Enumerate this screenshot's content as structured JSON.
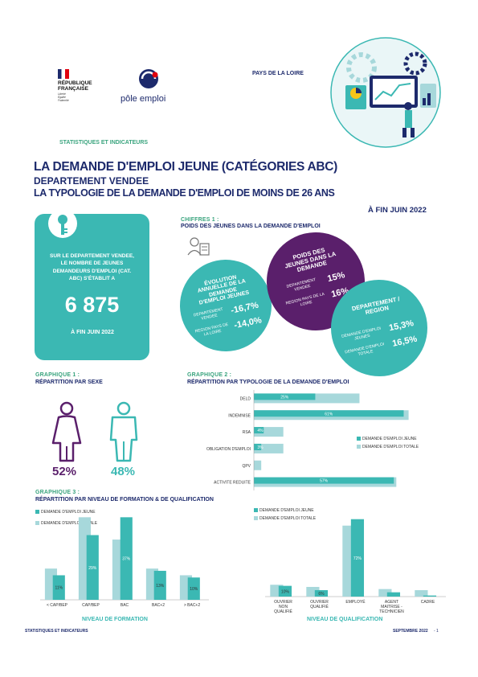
{
  "header": {
    "republic_lines": [
      "RÉPUBLIQUE",
      "FRANÇAISE"
    ],
    "republic_motto": [
      "Liberté",
      "Égalité",
      "Fraternité"
    ],
    "pole_emploi": "pôle emploi",
    "region": "PAYS DE LA LOIRE",
    "section": "STATISTIQUES ET INDICATEURS"
  },
  "titles": {
    "main": "LA DEMANDE D'EMPLOI JEUNE (CATÉGORIES ABC)",
    "dept": "DEPARTEMENT VENDEE",
    "typology": "LA TYPOLOGIE DE LA DEMANDE D'EMPLOI DE MOINS DE 26 ANS",
    "date": "À FIN JUIN 2022"
  },
  "keybox": {
    "text": "SUR LE DEPARTEMENT VENDEE, LE NOMBRE DE JEUNES DEMANDEURS D'EMPLOI (CAT. ABC) S'ÉTABLIT A",
    "value": "6 875",
    "date": "À FIN JUIN 2022"
  },
  "chiffres": {
    "label": "CHIFFRES 1 :",
    "sub": "POIDS DES JEUNES DANS LA DEMANDE D'EMPLOI",
    "evolution": {
      "title": "ÉVOLUTION ANNUELLE DE LA DEMANDE D'EMPLOI JEUNES",
      "dept_label": "DEPARTEMENT VENDEE",
      "dept_value": "-16,7%",
      "region_label": "REGION PAYS DE LA LOIRE",
      "region_value": "-14,0%"
    },
    "poids": {
      "title": "POIDS DES JEUNES DANS LA DEMANDE",
      "dept_label": "DEPARTEMENT VENDEE",
      "dept_value": "15%",
      "region_label": "REGION PAYS DE LA LOIRE",
      "region_value": "16%"
    },
    "deptregion": {
      "title": "DEPARTEMENT / REGION",
      "jeunes_label": "DEMANDE D'EMPLOI JEUNES",
      "jeunes_value": "15,3%",
      "totale_label": "DEMANDE D'EMPLOI TOTALE",
      "totale_value": "16,5%"
    }
  },
  "graph1": {
    "label": "GRAPHIQUE 1 :",
    "sub": "RÉPARTITION PAR SEXE",
    "female_pct": "52%",
    "male_pct": "48%"
  },
  "graph2": {
    "label": "GRAPHIQUE 2 :",
    "sub": "RÉPARTITION PAR TYPOLOGIE DE LA DEMANDE D'EMPLOI",
    "legend_jeune": "DEMANDE D'EMPLOI JEUNE",
    "legend_totale": "DEMANDE D'EMPLOI TOTALE"
  },
  "graph3": {
    "label": "GRAPHIQUE 3 :",
    "sub": "RÉPARTITION PAR NIVEAU DE FORMATION & DE QUALIFICATION",
    "legend_jeune": "DEMANDE D'EMPLOI JEUNE",
    "legend_totale": "DEMANDE D'EMPLOI TOTALE",
    "formation_title": "NIVEAU DE FORMATION",
    "qualification_title": "NIVEAU DE QUALIFICATION"
  },
  "footer": {
    "left": "STATISTIQUES ET INDICATEURS",
    "right": "SEPTEMBRE 2022",
    "page": "- 1"
  },
  "colors": {
    "teal": "#3bb8b3",
    "light_teal": "#a7d8db",
    "purple": "#5a1f6b",
    "navy": "#1d2a6c",
    "green": "#3aa47e"
  },
  "chart_data": [
    {
      "type": "bar",
      "orientation": "horizontal",
      "categories": [
        "DELD",
        "INDEMNISE",
        "RSA",
        "OBLIGATION D'EMPLOI",
        "QPV",
        "ACTIVITE REDUITE"
      ],
      "series": [
        {
          "name": "DEMANDE D'EMPLOI JEUNE",
          "values": [
            25,
            61,
            4,
            3,
            0,
            57
          ],
          "labels": [
            "25%",
            "61%",
            "4%",
            "3%",
            "",
            "57%"
          ]
        },
        {
          "name": "DEMANDE D'EMPLOI TOTALE",
          "values": [
            43,
            63,
            12,
            12,
            3,
            58
          ]
        }
      ],
      "xlim": [
        0,
        70
      ]
    },
    {
      "type": "bar",
      "categories": [
        "< CAP/BEP",
        "CAP/BEP",
        "BAC",
        "BAC+2",
        "> BAC+2"
      ],
      "series": [
        {
          "name": "DEMANDE D'EMPLOI JEUNE",
          "values": [
            11,
            29,
            37,
            13,
            10
          ],
          "labels": [
            "11%",
            "29%",
            "37%",
            "13%",
            "10%"
          ]
        },
        {
          "name": "DEMANDE D'EMPLOI TOTALE",
          "values": [
            14,
            37,
            27,
            14,
            11
          ]
        }
      ],
      "title": "NIVEAU DE FORMATION",
      "ylim": [
        0,
        40
      ]
    },
    {
      "type": "bar",
      "categories": [
        "OUVRIER NON QUALIFIÉ",
        "OUVRIER QUALIFIÉ",
        "EMPLOYÉ",
        "AGENT MAITRISE - TECHNICIEN",
        "CADRE"
      ],
      "series": [
        {
          "name": "DEMANDE D'EMPLOI JEUNE",
          "values": [
            10,
            6,
            72,
            4,
            1
          ],
          "labels": [
            "10%",
            "6%",
            "72%",
            "",
            ""
          ]
        },
        {
          "name": "DEMANDE D'EMPLOI TOTALE",
          "values": [
            11,
            9,
            66,
            7,
            6
          ]
        }
      ],
      "title": "NIVEAU DE QUALIFICATION",
      "ylim": [
        0,
        80
      ]
    }
  ]
}
